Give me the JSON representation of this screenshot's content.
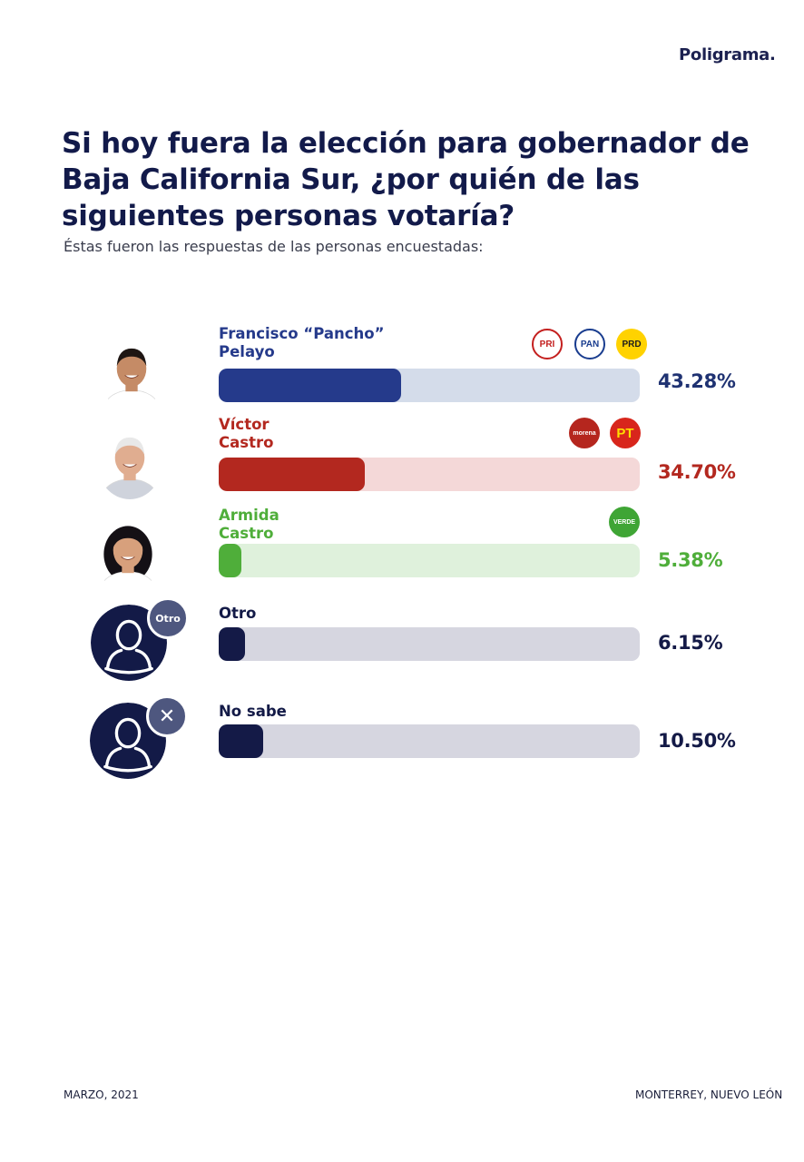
{
  "brand": {
    "name": "Poligrama",
    "dot": "."
  },
  "title": "Si  hoy fuera la elección para gobernador de Baja California Sur, ¿por quién de las siguientes personas votaría?",
  "subtitle": "Éstas fueron las respuestas de las personas encuestadas:",
  "chart_data": {
    "type": "bar",
    "orientation": "horizontal",
    "title": "Si  hoy fuera la elección para gobernador de Baja California Sur, ¿por quién de las siguientes personas votaría?",
    "categories": [
      "Francisco “Pancho” Pelayo",
      "Víctor Castro",
      "Armida Castro",
      "Otro",
      "No sabe"
    ],
    "values": [
      43.28,
      34.7,
      5.38,
      6.15,
      10.5
    ],
    "ylim": [
      0,
      100
    ],
    "unit": "%",
    "items": [
      {
        "name": "Francisco “Pancho”\nPelayo",
        "value": 43.28,
        "label": "43.28%",
        "color": "#253a8b",
        "track": "#d4dcea",
        "parties": [
          "PRI",
          "PAN",
          "PRD"
        ]
      },
      {
        "name": "Víctor\nCastro",
        "value": 34.7,
        "label": "34.70%",
        "color": "#b3281f",
        "track": "#f4d8d8",
        "parties": [
          "morena",
          "PT"
        ]
      },
      {
        "name": "Armida\nCastro",
        "value": 5.38,
        "label": "5.38%",
        "color": "#4fae3a",
        "track": "#dff1dc",
        "parties": [
          "VERDE"
        ]
      },
      {
        "name": "Otro",
        "value": 6.15,
        "label": "6.15%",
        "color": "#141a47",
        "track": "#d6d6e0",
        "badge": "Otro"
      },
      {
        "name": "No sabe",
        "value": 10.5,
        "label": "10.50%",
        "color": "#141a47",
        "track": "#d6d6e0",
        "badge": "✕"
      }
    ]
  },
  "parties": {
    "PRI": {
      "label": "PRI",
      "bg": "#ffffff",
      "fg": "#c4201f"
    },
    "PAN": {
      "label": "PAN",
      "bg": "#ffffff",
      "fg": "#1a3d8f"
    },
    "PRD": {
      "label": "PRD",
      "bg": "#ffd200",
      "fg": "#1c1c1c"
    },
    "morena": {
      "label": "morena",
      "bg": "#b5261e",
      "fg": "#ffffff"
    },
    "PT": {
      "label": "PT",
      "bg": "#d8261c",
      "fg": "#ffde00"
    },
    "VERDE": {
      "label": "VERDE",
      "bg": "#3fa535",
      "fg": "#ffffff"
    }
  },
  "footer": {
    "left": "MARZO, 2021",
    "right": "MONTERREY, NUEVO LEÓN"
  }
}
